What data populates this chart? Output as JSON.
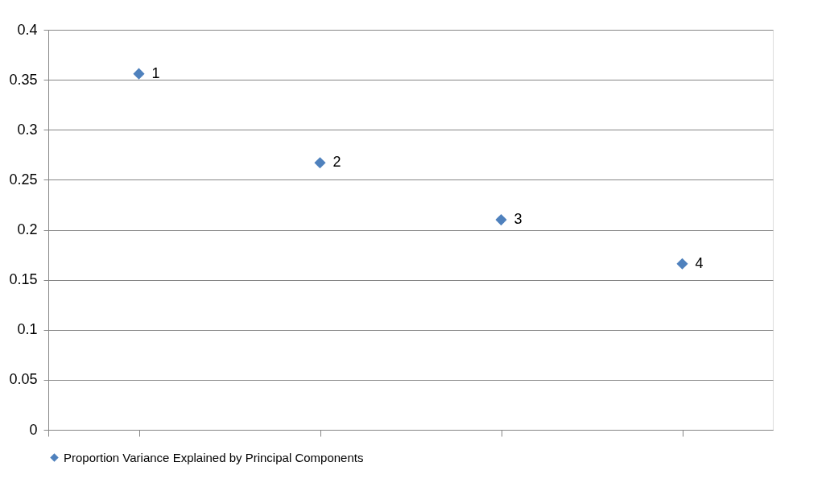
{
  "chart_data": {
    "type": "scatter",
    "categories": [
      null,
      null,
      null,
      null
    ],
    "series": [
      {
        "name": "Proportion Variance Explained by Principal Components",
        "color": "#4f81bd",
        "values": [
          0.356,
          0.267,
          0.21,
          0.166
        ]
      }
    ],
    "annotations": [
      "1",
      "2",
      "3",
      "4"
    ],
    "ylim": [
      0,
      0.4
    ],
    "yticks": [
      0,
      0.05,
      0.1,
      0.15,
      0.2,
      0.25,
      0.3,
      0.35,
      0.4
    ],
    "tick_labels": "y",
    "grid": "y",
    "legend": "bottom",
    "marker": "diamond"
  }
}
